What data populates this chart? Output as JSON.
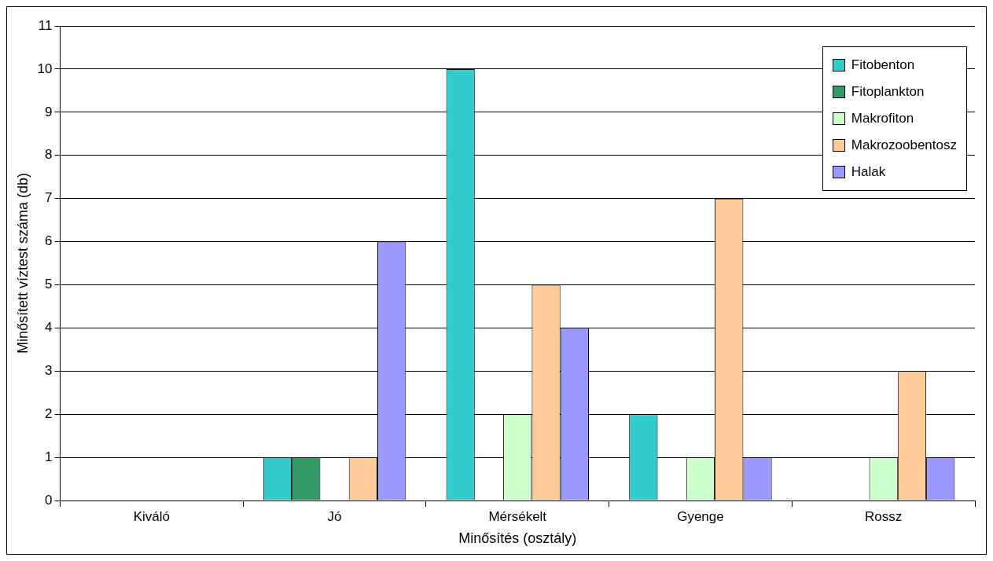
{
  "chart_data": {
    "type": "bar",
    "xlabel": "Minősítés (osztály)",
    "ylabel": "Minősített víztest száma (db)",
    "categories": [
      "Kiváló",
      "Jó",
      "Mérsékelt",
      "Gyenge",
      "Rossz"
    ],
    "series": [
      {
        "name": "Fitobenton",
        "color": "#33cccc",
        "values": [
          0,
          1,
          10,
          2,
          0
        ]
      },
      {
        "name": "Fitoplankton",
        "color": "#339966",
        "values": [
          0,
          1,
          0,
          0,
          0
        ]
      },
      {
        "name": "Makrofiton",
        "color": "#ccffcc",
        "values": [
          0,
          0,
          2,
          1,
          1
        ]
      },
      {
        "name": "Makrozoobentosz",
        "color": "#ffcc99",
        "values": [
          0,
          1,
          5,
          7,
          3
        ]
      },
      {
        "name": "Halak",
        "color": "#9999ff",
        "values": [
          0,
          6,
          4,
          1,
          1
        ]
      }
    ],
    "ylim": [
      0,
      11
    ],
    "yticks": [
      0,
      1,
      2,
      3,
      4,
      5,
      6,
      7,
      8,
      9,
      10,
      11
    ],
    "grid": "y",
    "legend": "top right"
  }
}
